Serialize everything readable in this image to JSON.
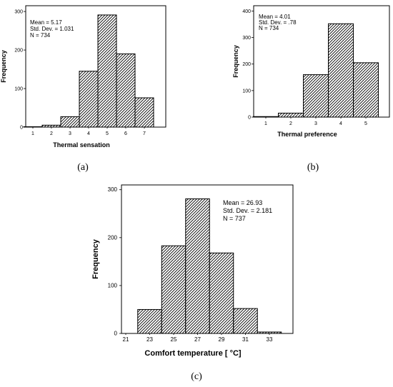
{
  "chart_data": [
    {
      "id": "a",
      "type": "bar",
      "caption": "(a)",
      "categories": [
        "1",
        "2",
        "3",
        "4",
        "5",
        "6",
        "7"
      ],
      "values": [
        1,
        5,
        27,
        145,
        291,
        190,
        76
      ],
      "xlabel": "Thermal sensation",
      "ylabel": "Frequency",
      "yticks": [
        0,
        100,
        200,
        300
      ],
      "ylim": [
        0,
        315
      ],
      "stats": {
        "mean": "Mean =  5.17",
        "sd": "Std. Dev. =  1.031",
        "n": "N =  734"
      }
    },
    {
      "id": "b",
      "type": "bar",
      "caption": "(b)",
      "categories": [
        "1",
        "2",
        "3",
        "4",
        "5"
      ],
      "values": [
        2,
        15,
        160,
        352,
        205
      ],
      "xlabel": "Thermal preference",
      "ylabel": "Frequency",
      "yticks": [
        0,
        100,
        200,
        300,
        400
      ],
      "ylim": [
        0,
        420
      ],
      "stats": {
        "mean": "Mean =  4.01",
        "sd": "Std. Dev. =  .78",
        "n": "N =  734"
      }
    },
    {
      "id": "c",
      "type": "bar",
      "caption": "(c)",
      "categories": [
        "21",
        "23",
        "25",
        "27",
        "29",
        "31",
        "33"
      ],
      "values": [
        0,
        50,
        183,
        281,
        168,
        52,
        3
      ],
      "xlabel": "Comfort temperature [ °C]",
      "ylabel": "Frequency",
      "yticks": [
        0,
        100,
        200,
        300
      ],
      "ylim": [
        0,
        310
      ],
      "stats": {
        "mean": "Mean =  26.93",
        "sd": "Std. Dev. =  2.181",
        "n": "N =  737"
      }
    }
  ]
}
